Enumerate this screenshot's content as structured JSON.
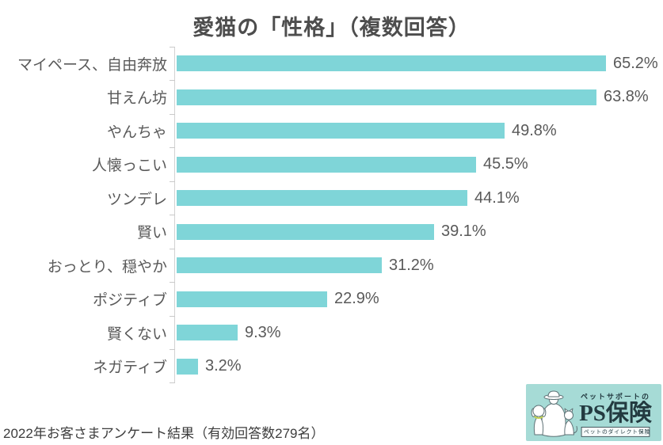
{
  "page": {
    "title": "愛猫の「性格」（複数回答）",
    "footer": "2022年お客さまアンケート結果（有効回答数279名）"
  },
  "chart_data": {
    "type": "bar",
    "orientation": "horizontal",
    "title": "愛猫の「性格」（複数回答）",
    "categories": [
      "マイペース、自由奔放",
      "甘えん坊",
      "やんちゃ",
      "人懐っこい",
      "ツンデレ",
      "賢い",
      "おっとり、穏やか",
      "ポジティブ",
      "賢くない",
      "ネガティブ"
    ],
    "values": [
      65.2,
      63.8,
      49.8,
      45.5,
      44.1,
      39.1,
      31.2,
      22.9,
      9.3,
      3.2
    ],
    "value_labels": [
      "65.2%",
      "63.8%",
      "49.8%",
      "45.5%",
      "44.1%",
      "39.1%",
      "31.2%",
      "22.9%",
      "9.3%",
      "3.2%"
    ],
    "unit": "%",
    "xlim": [
      0,
      70
    ],
    "grid": false,
    "legend": false,
    "bar_color": "#7fd5d8",
    "axis_color": "#d2d2d2",
    "label_color": "#595959",
    "source_note": "2022年お客さまアンケート結果（有効回答数279名）"
  },
  "logo": {
    "top_text": "ペットサポートの",
    "brand_text": "PS保険",
    "tagline": "ペットのダイレクト保険",
    "bg_color": "#a6dbd6",
    "text_color": "#233a40",
    "collar_color": "#c3cf4e",
    "illustration": "person-with-hat-sitting-with-dog-and-cat"
  }
}
